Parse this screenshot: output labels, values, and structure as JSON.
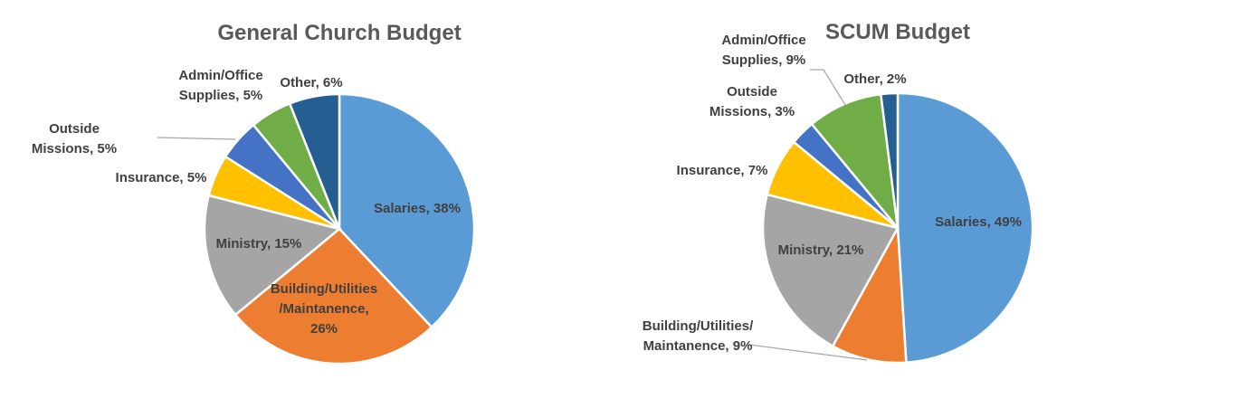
{
  "chart_data": [
    {
      "type": "pie",
      "title": "General Church Budget",
      "slices": [
        {
          "label": "Salaries",
          "value": 38,
          "color": "#5B9BD5",
          "text": [
            "Salaries, 38%"
          ]
        },
        {
          "label": "Building/Utilities/Maintanence",
          "value": 26,
          "color": "#ED7D31",
          "text": [
            "Building/Utilities",
            "/Maintanence,",
            "26%"
          ]
        },
        {
          "label": "Ministry",
          "value": 15,
          "color": "#A5A5A5",
          "text": [
            "Ministry, 15%"
          ]
        },
        {
          "label": "Insurance",
          "value": 5,
          "color": "#FFC000",
          "text": [
            "Insurance, 5%"
          ]
        },
        {
          "label": "Outside Missions",
          "value": 5,
          "color": "#4472C4",
          "text": [
            "Outside",
            "Missions, 5%"
          ]
        },
        {
          "label": "Admin/Office Supplies",
          "value": 5,
          "color": "#70AD47",
          "text": [
            "Admin/Office",
            "Supplies, 5%"
          ]
        },
        {
          "label": "Other",
          "value": 6,
          "color": "#255E91",
          "text": [
            "Other, 6%"
          ]
        }
      ]
    },
    {
      "type": "pie",
      "title": "SCUM Budget",
      "slices": [
        {
          "label": "Salaries",
          "value": 49,
          "color": "#5B9BD5",
          "text": [
            "Salaries, 49%"
          ]
        },
        {
          "label": "Building/Utilities/Maintanence",
          "value": 9,
          "color": "#ED7D31",
          "text": [
            "Building/Utilities/",
            "Maintanence, 9%"
          ]
        },
        {
          "label": "Ministry",
          "value": 21,
          "color": "#A5A5A5",
          "text": [
            "Ministry, 21%"
          ]
        },
        {
          "label": "Insurance",
          "value": 7,
          "color": "#FFC000",
          "text": [
            "Insurance, 7%"
          ]
        },
        {
          "label": "Outside Missions",
          "value": 3,
          "color": "#4472C4",
          "text": [
            "Outside",
            "Missions, 3%"
          ]
        },
        {
          "label": "Admin/Office Supplies",
          "value": 9,
          "color": "#70AD47",
          "text": [
            "Admin/Office",
            "Supplies, 9%"
          ]
        },
        {
          "label": "Other",
          "value": 2,
          "color": "#255E91",
          "text": [
            "Other, 2%"
          ]
        }
      ]
    }
  ]
}
